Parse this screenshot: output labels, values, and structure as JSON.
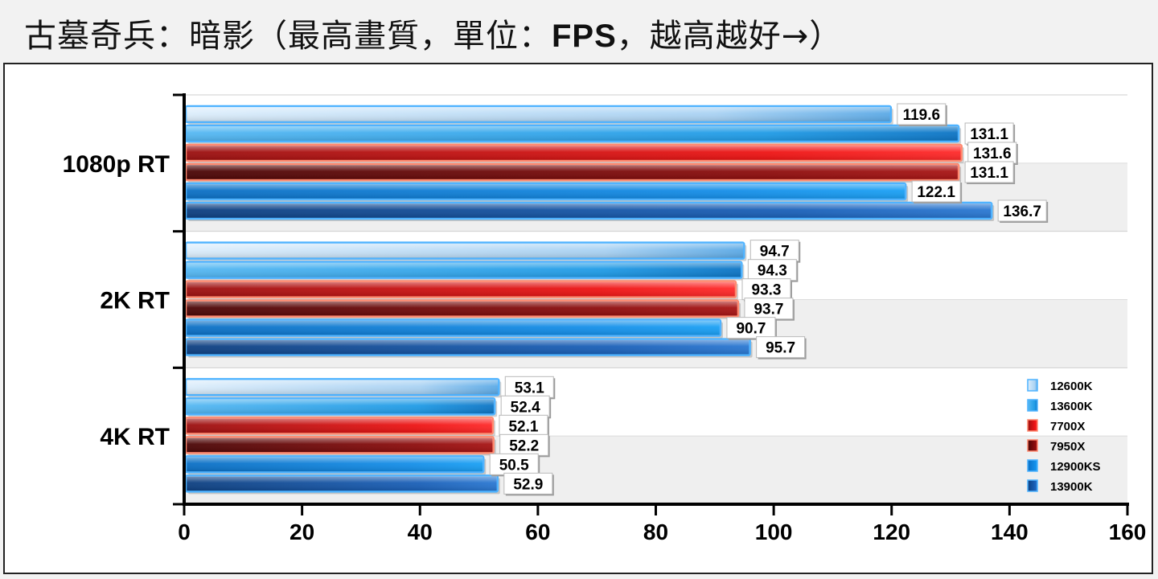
{
  "title": {
    "prefix": "古墓奇兵：暗影（最高畫質，單位：",
    "unit": "FPS",
    "suffix": "，越高越好→）"
  },
  "chart_data": {
    "type": "bar",
    "orientation": "horizontal",
    "categories": [
      "1080p RT",
      "2K RT",
      "4K RT"
    ],
    "series": [
      {
        "name": "12600K",
        "values": [
          119.6,
          94.7,
          53.1
        ],
        "color": "#a9d2f3"
      },
      {
        "name": "13600K",
        "values": [
          131.1,
          94.3,
          52.4
        ],
        "color": "#1f9be6"
      },
      {
        "name": "7700X",
        "values": [
          131.6,
          93.3,
          52.1
        ],
        "color": "#ee1414"
      },
      {
        "name": "7950X",
        "values": [
          131.1,
          93.7,
          52.2
        ],
        "color": "#8e0d0d"
      },
      {
        "name": "12900KS",
        "values": [
          122.1,
          90.7,
          50.5
        ],
        "color": "#148ee8"
      },
      {
        "name": "13900K",
        "values": [
          136.7,
          95.7,
          52.9
        ],
        "color": "#1a60b8"
      }
    ],
    "value_labels": [
      [
        "119.6",
        "94.7",
        "53.1"
      ],
      [
        "131.1",
        "94.3",
        "52.4"
      ],
      [
        "131.6",
        "93.3",
        "52.1"
      ],
      [
        "131.1",
        "93.7",
        "52.2"
      ],
      [
        "122.1",
        "90.7",
        "50.5"
      ],
      [
        "136.7",
        "95.7",
        "52.9"
      ]
    ],
    "xlim": [
      0,
      160
    ],
    "xticks": [
      0,
      20,
      40,
      60,
      80,
      100,
      120,
      140,
      160
    ],
    "xlabel": "",
    "ylabel": "",
    "grid": true,
    "legend_position": "bottom-right"
  }
}
